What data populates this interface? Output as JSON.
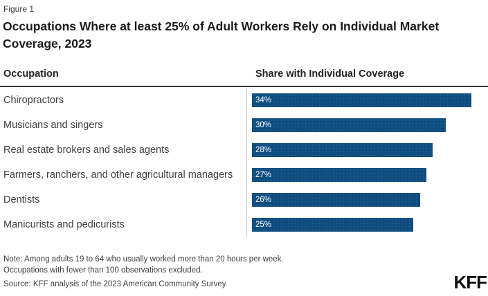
{
  "figure_label": "Figure 1",
  "title": "Occupations Where at least 25% of Adult Workers Rely on Individual Market Coverage, 2023",
  "columns": {
    "occupation": "Occupation",
    "share": "Share with Individual Coverage"
  },
  "chart_data": {
    "type": "bar",
    "orientation": "horizontal",
    "title": "Occupations Where at least 25% of Adult Workers Rely on Individual Market Coverage, 2023",
    "xlabel": "Share with Individual Coverage",
    "ylabel": "Occupation",
    "categories": [
      "Chiropractors",
      "Musicians and singers",
      "Real estate brokers and sales agents",
      "Farmers, ranchers, and other agricultural managers",
      "Dentists",
      "Manicurists and pedicurists"
    ],
    "values": [
      34,
      30,
      28,
      27,
      26,
      25
    ],
    "value_labels": [
      "34%",
      "30%",
      "28%",
      "27%",
      "26%",
      "25%"
    ],
    "xlim": [
      0,
      36
    ],
    "grid": false,
    "legend": false,
    "bar_color": "#0e4d80"
  },
  "notes": {
    "note": "Note: Among adults 19 to 64 who usually worked more than 20 hours per week.\nOccupations with fewer than 100 observations excluded.",
    "source": "Source: KFF analysis of the 2023 American Community Survey"
  },
  "branding": {
    "logo": "KFF"
  },
  "colors": {
    "bar": "#0e4d80",
    "title": "#1b1b1b",
    "header_rule": "#333333",
    "axis_line": "#c9c9c9",
    "text": "#3d3d3d",
    "bar_label": "#ffffff"
  }
}
